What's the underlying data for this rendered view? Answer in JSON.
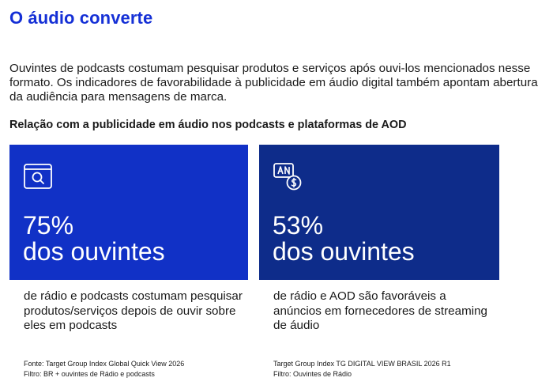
{
  "title": "O áudio converte",
  "intro": "Ouvintes de podcasts costumam pesquisar produtos e serviços após ouvi-los mencionados nesse formato. Os indicadores de favorabilidade à publicidade em áudio digital também apontam abertura da audiência para mensagens de marca.",
  "subheading": "Relação com a publicidade em áudio nos podcasts e plataformas de AOD",
  "colors": {
    "title": "#1530d6",
    "card_1": "#1131c6",
    "card_2": "#0e2c8a"
  },
  "cards": [
    {
      "icon": "search-window-icon",
      "percent": "75%",
      "audience": "dos ouvintes",
      "description": "de rádio e podcasts costumam pesquisar produtos/serviços depois de ouvir sobre eles em podcasts",
      "source": "Fonte: Target Group Index Global Quick View 2026",
      "filter": "Filtro: BR + ouvintes de Rádio e podcasts"
    },
    {
      "icon": "ad-money-icon",
      "percent": "53%",
      "audience": "dos ouvintes",
      "description": "de rádio e AOD são favoráveis a anúncios em fornecedores de streaming de áudio",
      "source": "Target Group Index TG DIGITAL VIEW BRASIL 2026 R1",
      "filter": "Filtro: Ouvintes de Rádio"
    }
  ]
}
